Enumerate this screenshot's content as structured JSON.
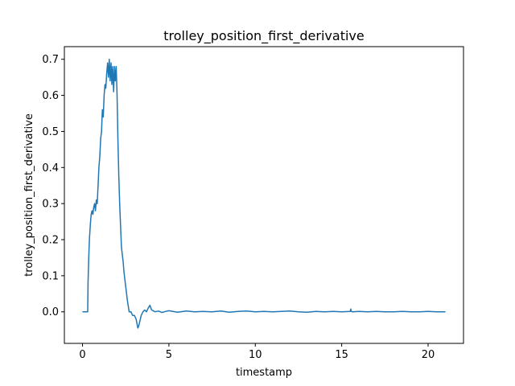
{
  "chart_data": {
    "type": "line",
    "title": "trolley_position_first_derivative",
    "xlabel": "timestamp",
    "ylabel": "trolley_position_first_derivative",
    "xlim": [
      -1.05,
      22.05
    ],
    "ylim": [
      -0.0875,
      0.735
    ],
    "xticks": [
      0,
      5,
      10,
      15,
      20
    ],
    "yticks": [
      0.0,
      0.1,
      0.2,
      0.3,
      0.4,
      0.5,
      0.6,
      0.7
    ],
    "xtick_labels": [
      "0",
      "5",
      "10",
      "15",
      "20"
    ],
    "ytick_labels": [
      "0.0",
      "0.1",
      "0.2",
      "0.3",
      "0.4",
      "0.5",
      "0.6",
      "0.7"
    ],
    "grid": false,
    "legend": "none",
    "color": "#1f77b4",
    "series": [
      {
        "x": [
          0.0,
          0.3,
          0.32,
          0.36,
          0.4,
          0.45,
          0.5,
          0.55,
          0.6,
          0.65,
          0.7,
          0.75,
          0.8,
          0.85,
          0.9,
          0.95,
          1.0,
          1.05,
          1.1,
          1.15,
          1.2,
          1.25,
          1.3,
          1.35,
          1.4,
          1.45,
          1.5,
          1.55,
          1.6,
          1.65,
          1.7,
          1.75,
          1.8,
          1.85,
          1.9,
          1.95,
          2.0,
          2.05,
          2.1,
          2.15,
          2.2,
          2.25,
          2.3,
          2.35,
          2.4,
          2.5,
          2.6,
          2.7,
          2.8,
          2.9,
          3.0,
          3.1,
          3.2,
          3.25,
          3.3,
          3.4,
          3.5,
          3.6,
          3.7,
          3.8,
          3.9,
          4.0,
          4.2,
          4.4,
          4.6,
          4.8,
          5.0,
          5.5,
          6.0,
          6.5,
          7.0,
          7.5,
          8.0,
          8.5,
          9.0,
          9.5,
          10.0,
          10.5,
          11.0,
          11.5,
          12.0,
          12.5,
          13.0,
          13.5,
          14.0,
          14.5,
          15.0,
          15.5,
          15.52,
          15.55,
          15.6,
          16.0,
          16.5,
          17.0,
          17.5,
          18.0,
          18.5,
          19.0,
          19.5,
          20.0,
          20.5,
          21.0
        ],
        "y": [
          0.0,
          0.0,
          0.08,
          0.15,
          0.2,
          0.24,
          0.27,
          0.28,
          0.27,
          0.29,
          0.3,
          0.28,
          0.31,
          0.3,
          0.35,
          0.4,
          0.43,
          0.48,
          0.5,
          0.56,
          0.54,
          0.6,
          0.63,
          0.62,
          0.66,
          0.69,
          0.65,
          0.7,
          0.64,
          0.69,
          0.63,
          0.68,
          0.61,
          0.68,
          0.64,
          0.68,
          0.6,
          0.47,
          0.38,
          0.3,
          0.24,
          0.18,
          0.16,
          0.14,
          0.11,
          0.07,
          0.03,
          0.0,
          0.0,
          -0.01,
          -0.01,
          -0.02,
          -0.045,
          -0.04,
          -0.03,
          -0.01,
          0.0,
          0.005,
          0.0,
          0.01,
          0.018,
          0.005,
          0.0,
          0.002,
          -0.002,
          0.001,
          0.003,
          -0.001,
          0.002,
          0.0,
          0.001,
          0.0,
          0.002,
          -0.001,
          0.001,
          0.002,
          0.0,
          0.001,
          0.0,
          0.001,
          0.002,
          0.0,
          -0.001,
          0.001,
          0.0,
          0.001,
          0.0,
          0.001,
          0.008,
          0.002,
          0.0,
          0.001,
          0.0,
          0.001,
          0.0,
          0.0,
          0.001,
          0.0,
          0.0,
          0.001,
          0.0,
          0.0
        ]
      }
    ]
  }
}
